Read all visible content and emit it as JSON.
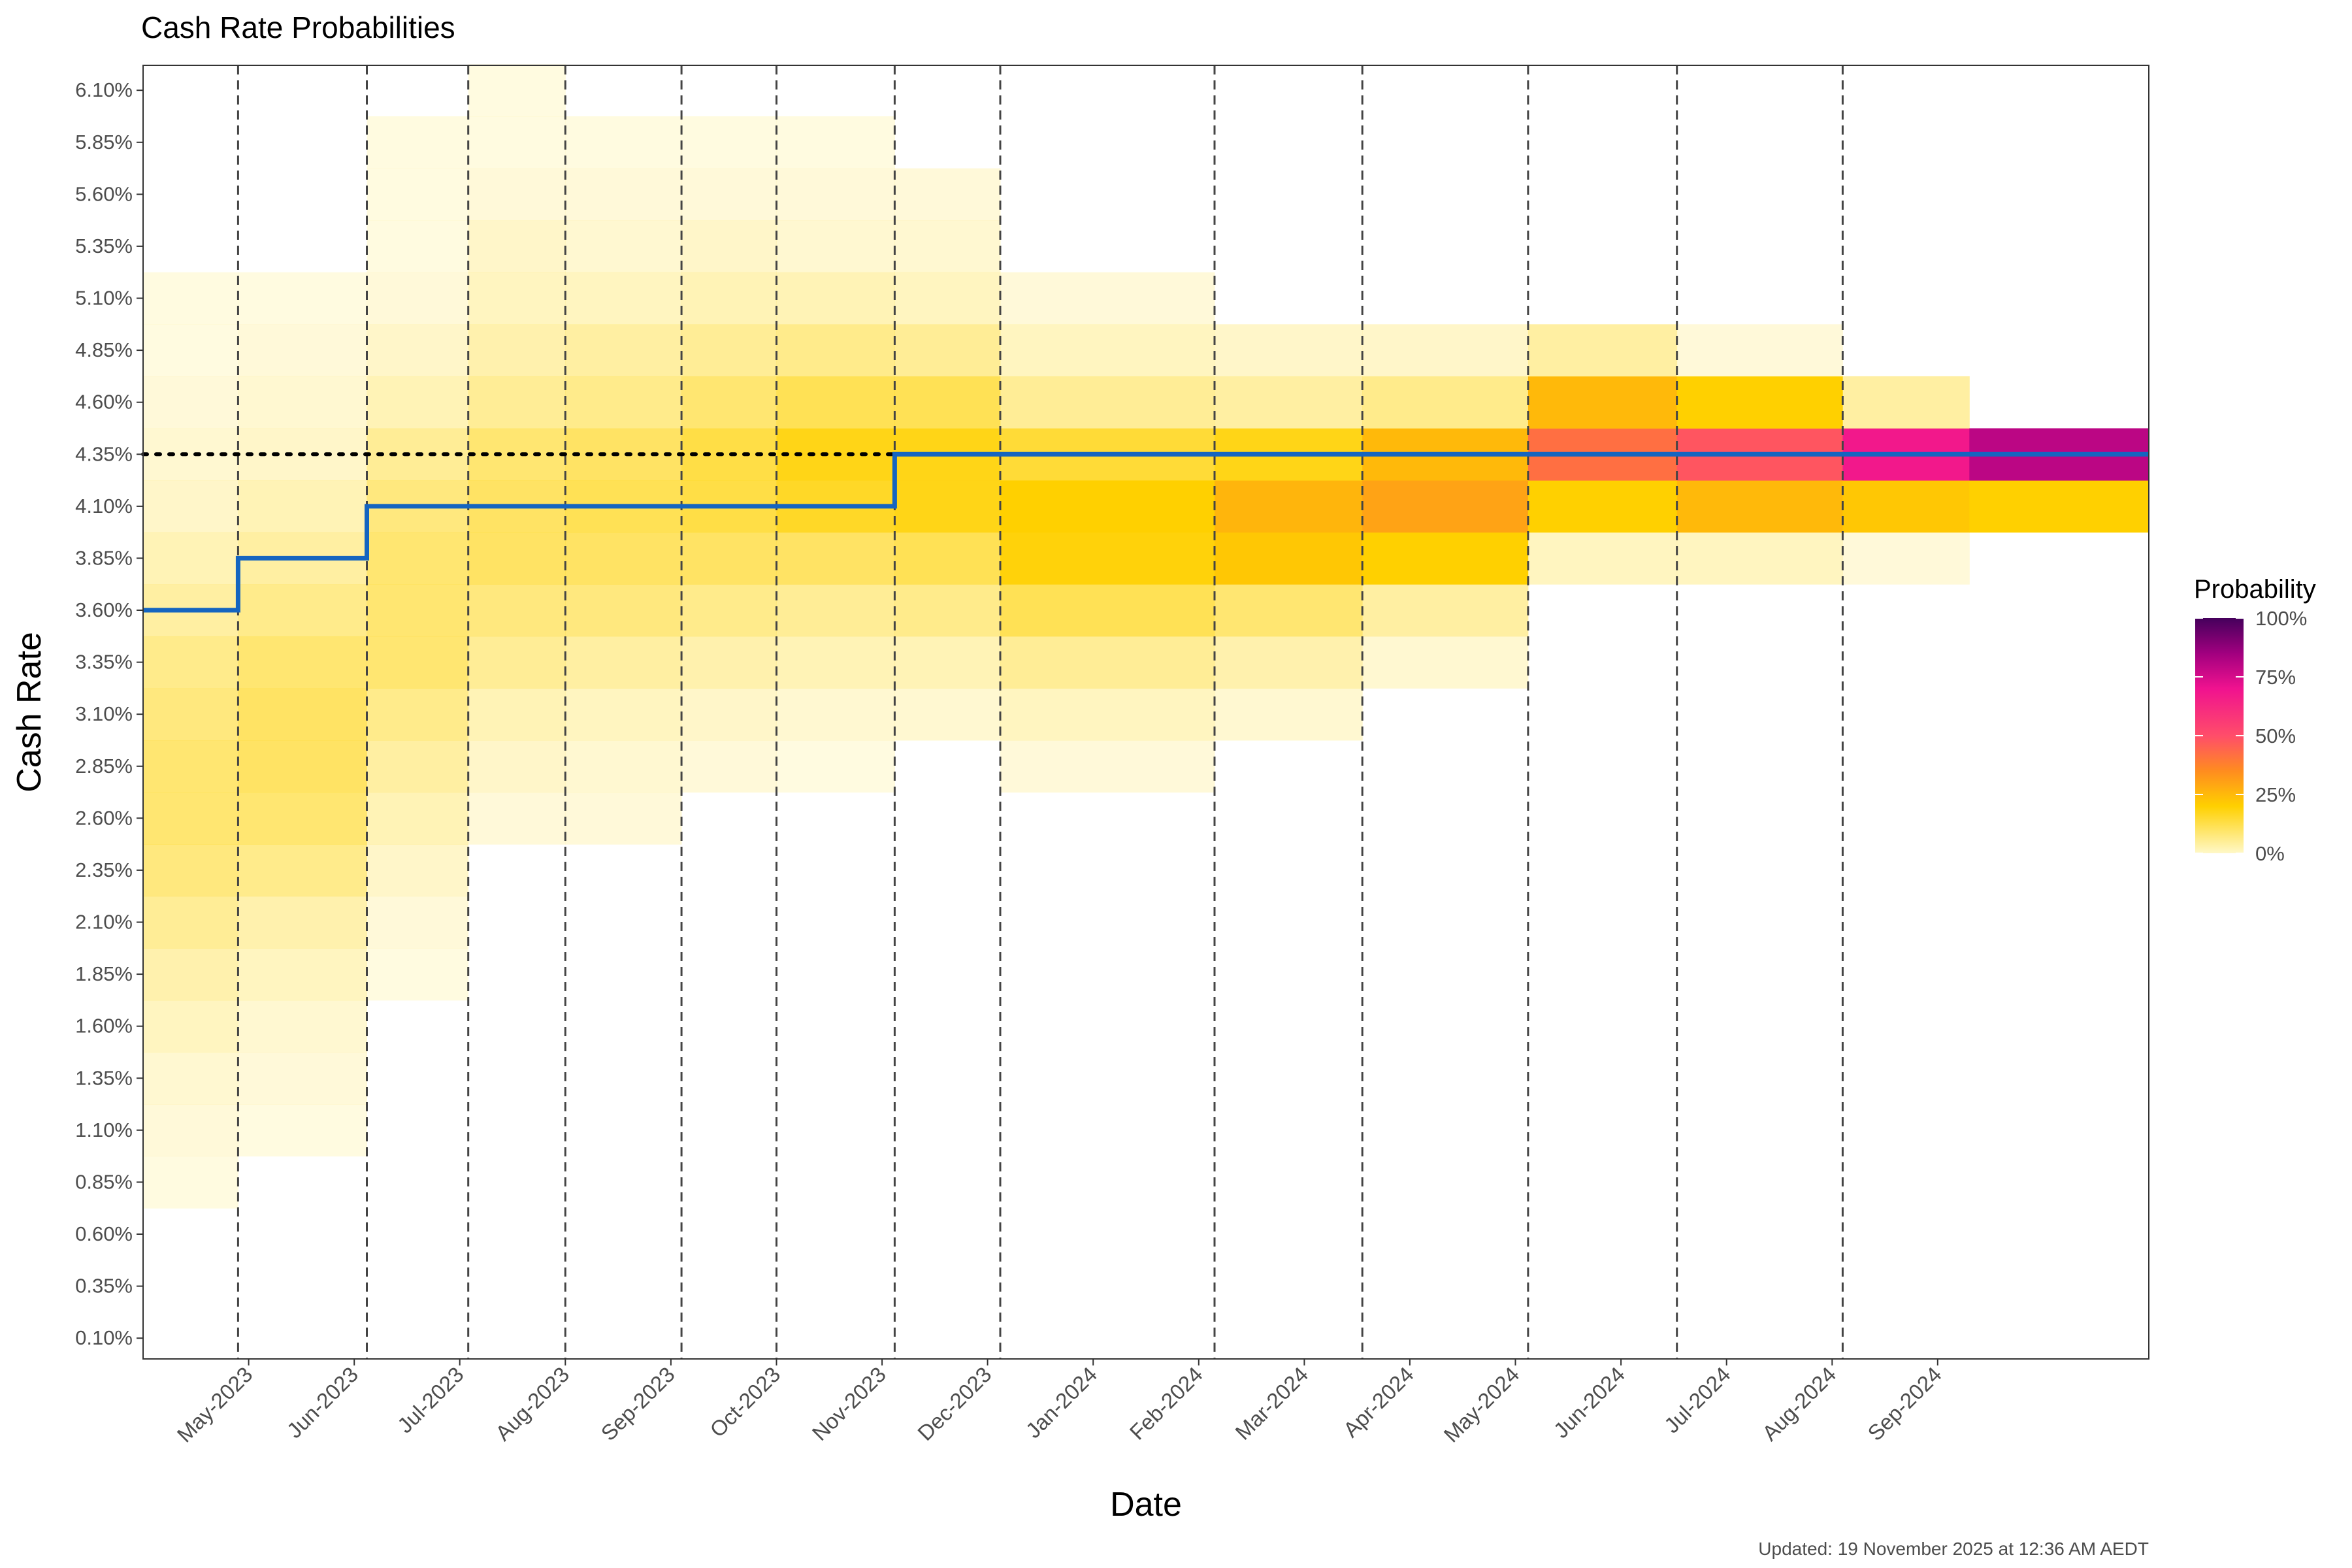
{
  "chart_data": {
    "type": "heatmap",
    "title": "Cash Rate Probabilities",
    "xlabel": "Date",
    "ylabel": "Cash Rate",
    "caption": "Updated: 19 November 2025 at 12:36 AM AEDT",
    "legend": {
      "title": "Probability",
      "position": "right",
      "labels": [
        "100%",
        "75%",
        "50%",
        "25%",
        "0%"
      ],
      "stops": [
        {
          "p": 0.0,
          "color": "#fff8c8"
        },
        {
          "p": 0.2,
          "color": "#ffd000"
        },
        {
          "p": 0.35,
          "color": "#ff8c1f"
        },
        {
          "p": 0.5,
          "color": "#ff4d6a"
        },
        {
          "p": 0.7,
          "color": "#f0128f"
        },
        {
          "p": 0.85,
          "color": "#a1007f"
        },
        {
          "p": 1.0,
          "color": "#45005c"
        }
      ]
    },
    "x_range_months": [
      0.0,
      19.0
    ],
    "x_ticks": [
      {
        "label": "May-2023",
        "m": 1.0
      },
      {
        "label": "Jun-2023",
        "m": 2.0
      },
      {
        "label": "Jul-2023",
        "m": 3.0
      },
      {
        "label": "Aug-2023",
        "m": 4.0
      },
      {
        "label": "Sep-2023",
        "m": 5.0
      },
      {
        "label": "Oct-2023",
        "m": 6.0
      },
      {
        "label": "Nov-2023",
        "m": 7.0
      },
      {
        "label": "Dec-2023",
        "m": 8.0
      },
      {
        "label": "Jan-2024",
        "m": 9.0
      },
      {
        "label": "Feb-2024",
        "m": 10.0
      },
      {
        "label": "Mar-2024",
        "m": 11.0
      },
      {
        "label": "Apr-2024",
        "m": 12.0
      },
      {
        "label": "May-2024",
        "m": 13.0
      },
      {
        "label": "Jun-2024",
        "m": 14.0
      },
      {
        "label": "Jul-2024",
        "m": 15.0
      },
      {
        "label": "Aug-2024",
        "m": 16.0
      },
      {
        "label": "Sep-2024",
        "m": 17.0
      }
    ],
    "y_ticks": [
      "6.10%",
      "5.85%",
      "5.60%",
      "5.35%",
      "5.10%",
      "4.85%",
      "4.60%",
      "4.35%",
      "4.10%",
      "3.85%",
      "3.60%",
      "3.35%",
      "3.10%",
      "2.85%",
      "2.60%",
      "2.35%",
      "2.10%",
      "1.85%",
      "1.60%",
      "1.35%",
      "1.10%",
      "0.85%",
      "0.60%",
      "0.35%",
      "0.10%"
    ],
    "y_range": [
      0.0,
      6.22
    ],
    "meeting_dates_months": [
      0.9,
      2.12,
      3.08,
      4.0,
      5.1,
      6.0,
      7.12,
      8.12,
      10.15,
      11.55,
      13.12,
      14.53,
      16.1
    ],
    "reference_rate": 4.35,
    "reference_label": "4.35%",
    "cash_rate_path": [
      {
        "start": 0.0,
        "end": 0.9,
        "rate": 3.6
      },
      {
        "start": 0.9,
        "end": 2.12,
        "rate": 3.85
      },
      {
        "start": 2.12,
        "end": 7.12,
        "rate": 4.1
      },
      {
        "start": 7.12,
        "end": 19.0,
        "rate": 4.35
      }
    ],
    "periods": [
      {
        "start": 0.0,
        "end": 0.9,
        "dist": [
          [
            0.85,
            1
          ],
          [
            1.1,
            2
          ],
          [
            1.35,
            3
          ],
          [
            1.6,
            5
          ],
          [
            1.85,
            7
          ],
          [
            2.1,
            9
          ],
          [
            2.35,
            11
          ],
          [
            2.6,
            12
          ],
          [
            2.85,
            12
          ],
          [
            3.1,
            11
          ],
          [
            3.35,
            10
          ],
          [
            3.6,
            8
          ],
          [
            3.85,
            6
          ],
          [
            4.1,
            4
          ],
          [
            4.35,
            3
          ],
          [
            4.6,
            2
          ],
          [
            4.85,
            1
          ],
          [
            5.1,
            1
          ]
        ]
      },
      {
        "start": 0.9,
        "end": 2.12,
        "dist": [
          [
            1.1,
            1
          ],
          [
            1.35,
            2
          ],
          [
            1.6,
            3
          ],
          [
            1.85,
            5
          ],
          [
            2.1,
            7
          ],
          [
            2.35,
            10
          ],
          [
            2.6,
            12
          ],
          [
            2.85,
            13
          ],
          [
            3.1,
            13
          ],
          [
            3.35,
            12
          ],
          [
            3.6,
            10
          ],
          [
            3.85,
            8
          ],
          [
            4.1,
            6
          ],
          [
            4.35,
            4
          ],
          [
            4.6,
            3
          ],
          [
            4.85,
            2
          ],
          [
            5.1,
            1
          ]
        ]
      },
      {
        "start": 2.12,
        "end": 3.08,
        "dist": [
          [
            1.85,
            1
          ],
          [
            2.1,
            2
          ],
          [
            2.35,
            4
          ],
          [
            2.6,
            6
          ],
          [
            2.85,
            8
          ],
          [
            3.1,
            10
          ],
          [
            3.35,
            12
          ],
          [
            3.6,
            12
          ],
          [
            3.85,
            12
          ],
          [
            4.1,
            11
          ],
          [
            4.35,
            9
          ],
          [
            4.6,
            6
          ],
          [
            4.85,
            4
          ],
          [
            5.1,
            2
          ],
          [
            5.35,
            1
          ],
          [
            5.6,
            1
          ],
          [
            5.85,
            1
          ]
        ]
      },
      {
        "start": 3.08,
        "end": 4.0,
        "dist": [
          [
            2.6,
            2
          ],
          [
            2.85,
            4
          ],
          [
            3.1,
            6
          ],
          [
            3.35,
            9
          ],
          [
            3.6,
            11
          ],
          [
            3.85,
            13
          ],
          [
            4.1,
            13
          ],
          [
            4.35,
            12
          ],
          [
            4.6,
            9
          ],
          [
            4.85,
            7
          ],
          [
            5.1,
            5
          ],
          [
            5.35,
            4
          ],
          [
            5.6,
            2
          ],
          [
            5.85,
            1
          ],
          [
            6.1,
            1
          ]
        ]
      },
      {
        "start": 4.0,
        "end": 5.1,
        "dist": [
          [
            2.6,
            2
          ],
          [
            2.85,
            3
          ],
          [
            3.1,
            5
          ],
          [
            3.35,
            8
          ],
          [
            3.6,
            11
          ],
          [
            3.85,
            13
          ],
          [
            4.1,
            14
          ],
          [
            4.35,
            13
          ],
          [
            4.6,
            10
          ],
          [
            4.85,
            8
          ],
          [
            5.1,
            5
          ],
          [
            5.35,
            3
          ],
          [
            5.6,
            2
          ],
          [
            5.85,
            1
          ]
        ]
      },
      {
        "start": 5.1,
        "end": 6.0,
        "dist": [
          [
            2.85,
            2
          ],
          [
            3.1,
            4
          ],
          [
            3.35,
            7
          ],
          [
            3.6,
            10
          ],
          [
            3.85,
            13
          ],
          [
            4.1,
            15
          ],
          [
            4.35,
            15
          ],
          [
            4.6,
            12
          ],
          [
            4.85,
            9
          ],
          [
            5.1,
            6
          ],
          [
            5.35,
            4
          ],
          [
            5.6,
            2
          ],
          [
            5.85,
            1
          ]
        ]
      },
      {
        "start": 6.0,
        "end": 7.12,
        "dist": [
          [
            2.85,
            1
          ],
          [
            3.1,
            3
          ],
          [
            3.35,
            6
          ],
          [
            3.6,
            9
          ],
          [
            3.85,
            13
          ],
          [
            4.1,
            17
          ],
          [
            4.35,
            18
          ],
          [
            4.6,
            14
          ],
          [
            4.85,
            10
          ],
          [
            5.1,
            6
          ],
          [
            5.35,
            3
          ],
          [
            5.6,
            2
          ],
          [
            5.85,
            1
          ]
        ]
      },
      {
        "start": 7.12,
        "end": 8.12,
        "dist": [
          [
            3.1,
            3
          ],
          [
            3.35,
            6
          ],
          [
            3.6,
            10
          ],
          [
            3.85,
            14
          ],
          [
            4.1,
            18
          ],
          [
            4.35,
            18
          ],
          [
            4.6,
            14
          ],
          [
            4.85,
            9
          ],
          [
            5.1,
            5
          ],
          [
            5.35,
            3
          ],
          [
            5.6,
            2
          ]
        ]
      },
      {
        "start": 8.12,
        "end": 10.15,
        "dist": [
          [
            2.85,
            2
          ],
          [
            3.1,
            5
          ],
          [
            3.35,
            9
          ],
          [
            3.6,
            14
          ],
          [
            3.85,
            19
          ],
          [
            4.1,
            20
          ],
          [
            4.35,
            16
          ],
          [
            4.6,
            9
          ],
          [
            4.85,
            5
          ],
          [
            5.1,
            2
          ]
        ]
      },
      {
        "start": 10.15,
        "end": 11.55,
        "dist": [
          [
            3.1,
            3
          ],
          [
            3.35,
            7
          ],
          [
            3.6,
            12
          ],
          [
            3.85,
            22
          ],
          [
            4.1,
            26
          ],
          [
            4.35,
            18
          ],
          [
            4.6,
            8
          ],
          [
            4.85,
            4
          ]
        ]
      },
      {
        "start": 11.55,
        "end": 13.12,
        "dist": [
          [
            3.35,
            3
          ],
          [
            3.6,
            8
          ],
          [
            3.85,
            20
          ],
          [
            4.1,
            30
          ],
          [
            4.35,
            25
          ],
          [
            4.6,
            10
          ],
          [
            4.85,
            4
          ]
        ]
      },
      {
        "start": 13.12,
        "end": 14.53,
        "dist": [
          [
            3.85,
            5
          ],
          [
            4.1,
            20
          ],
          [
            4.35,
            42
          ],
          [
            4.6,
            25
          ],
          [
            4.85,
            8
          ]
        ]
      },
      {
        "start": 14.53,
        "end": 16.1,
        "dist": [
          [
            3.85,
            5
          ],
          [
            4.1,
            25
          ],
          [
            4.35,
            48
          ],
          [
            4.6,
            20
          ],
          [
            4.85,
            2
          ]
        ]
      },
      {
        "start": 16.1,
        "end": 17.3,
        "dist": [
          [
            3.85,
            2
          ],
          [
            4.1,
            22
          ],
          [
            4.35,
            68
          ],
          [
            4.6,
            8
          ]
        ]
      },
      {
        "start": 17.3,
        "end": 19.0,
        "dist": [
          [
            4.1,
            20
          ],
          [
            4.35,
            80
          ]
        ]
      }
    ]
  }
}
